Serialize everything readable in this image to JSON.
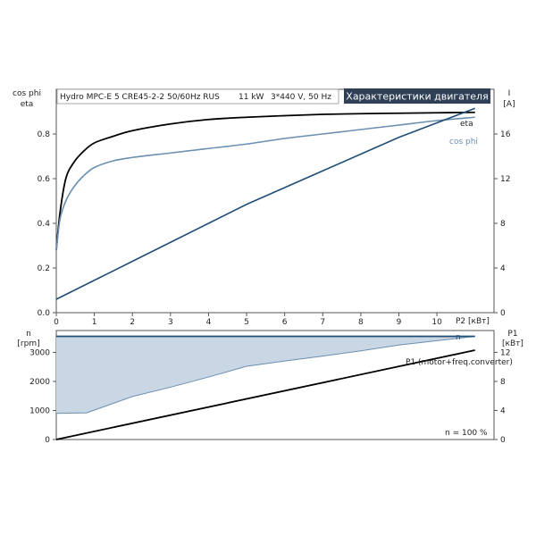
{
  "header": {
    "product": "Hydro MPC-E 5 CRE45-2-2 50/60Hz RUS",
    "power": "11 kW",
    "supply": "3*440 V, 50 Hz",
    "title": "Характеристики двигателя"
  },
  "upper": {
    "left_label_1": "cos phi",
    "left_label_2": "eta",
    "right_label_1": "I",
    "right_label_2": "[A]",
    "x_label": "P2 [кВт]",
    "eta_label": "eta",
    "cosphi_label": "cos phi"
  },
  "lower": {
    "left_label_1": "n",
    "left_label_2": "[rpm]",
    "right_label_1": "P1",
    "right_label_2": "[кВт]",
    "n_label": "n",
    "p1_label": "P1 (motor+freq.converter)",
    "note": "n = 100 %"
  },
  "colors": {
    "eta": "#000000",
    "cos_phi": "#6b8fb0",
    "current": "#1f4e79",
    "speed_line": "#1f4e79",
    "speed_band": "#c9d6e3",
    "speed_band_edge": "#6b8fb0",
    "p1": "#000000",
    "frame": "#555555",
    "title_bg": "#2f3f55",
    "title_fg": "#ffffff"
  },
  "chart_data": [
    {
      "type": "line",
      "x_label": "P2 [кВт]",
      "xlim": [
        0,
        11.5
      ],
      "x_ticks": [
        0,
        1,
        2,
        3,
        4,
        5,
        6,
        7,
        8,
        9,
        10
      ],
      "y_left_label": "cos phi / eta",
      "ylim_left": [
        0,
        1.0
      ],
      "y_left_ticks": [
        "0.0",
        "0.2",
        "0.4",
        "0.6",
        "0.8"
      ],
      "y_right_label": "I [A]",
      "ylim_right": [
        0,
        20
      ],
      "y_right_ticks": [
        "0",
        "4",
        "8",
        "12",
        "16"
      ],
      "series": [
        {
          "name": "eta",
          "axis": "left",
          "x": [
            0,
            0.1,
            0.25,
            0.45,
            0.7,
            1.0,
            1.5,
            2.0,
            3.0,
            4.0,
            5.0,
            6.0,
            7.0,
            8.0,
            9.0,
            10.0,
            11.0
          ],
          "y": [
            0.28,
            0.45,
            0.6,
            0.67,
            0.72,
            0.76,
            0.79,
            0.815,
            0.845,
            0.865,
            0.875,
            0.882,
            0.888,
            0.891,
            0.893,
            0.895,
            0.897
          ]
        },
        {
          "name": "cos phi",
          "axis": "left",
          "x": [
            0,
            0.1,
            0.25,
            0.45,
            0.7,
            1.0,
            1.5,
            2.0,
            3.0,
            4.0,
            5.0,
            6.0,
            7.0,
            8.0,
            9.0,
            10.0,
            11.0
          ],
          "y": [
            0.28,
            0.42,
            0.5,
            0.56,
            0.61,
            0.65,
            0.68,
            0.695,
            0.715,
            0.735,
            0.755,
            0.78,
            0.8,
            0.82,
            0.84,
            0.86,
            0.875
          ]
        },
        {
          "name": "I",
          "axis": "right",
          "x": [
            0,
            1,
            2,
            3,
            4,
            5,
            6,
            7,
            8,
            9,
            10,
            11
          ],
          "y": [
            1.2,
            2.9,
            4.6,
            6.3,
            8.0,
            9.7,
            11.2,
            12.7,
            14.2,
            15.7,
            17.0,
            18.3
          ]
        }
      ]
    },
    {
      "type": "area",
      "x_label": "P2 [кВт]",
      "xlim": [
        0,
        11.5
      ],
      "y_left_label": "n [rpm]",
      "ylim_left": [
        0,
        3750
      ],
      "y_left_ticks": [
        "0",
        "1000",
        "2000",
        "3000"
      ],
      "y_right_label": "P1 [кВт]",
      "ylim_right": [
        0,
        15
      ],
      "y_right_ticks": [
        "0",
        "4",
        "8",
        "12"
      ],
      "series": [
        {
          "name": "n",
          "axis": "left",
          "x": [
            0,
            11.0
          ],
          "y": [
            3550,
            3550
          ]
        },
        {
          "name": "n min",
          "axis": "left",
          "x": [
            0,
            0.8,
            2.0,
            3.0,
            4.0,
            5.0,
            6.0,
            7.0,
            8.0,
            9.0,
            10.0,
            11.0
          ],
          "y": [
            900,
            920,
            1480,
            1800,
            2150,
            2520,
            2700,
            2870,
            3050,
            3250,
            3400,
            3550
          ]
        },
        {
          "name": "P1 (motor+freq.converter)",
          "axis": "right",
          "x": [
            0,
            11.0
          ],
          "y": [
            0,
            12.3
          ]
        }
      ],
      "annotation": "n = 100 %"
    }
  ]
}
